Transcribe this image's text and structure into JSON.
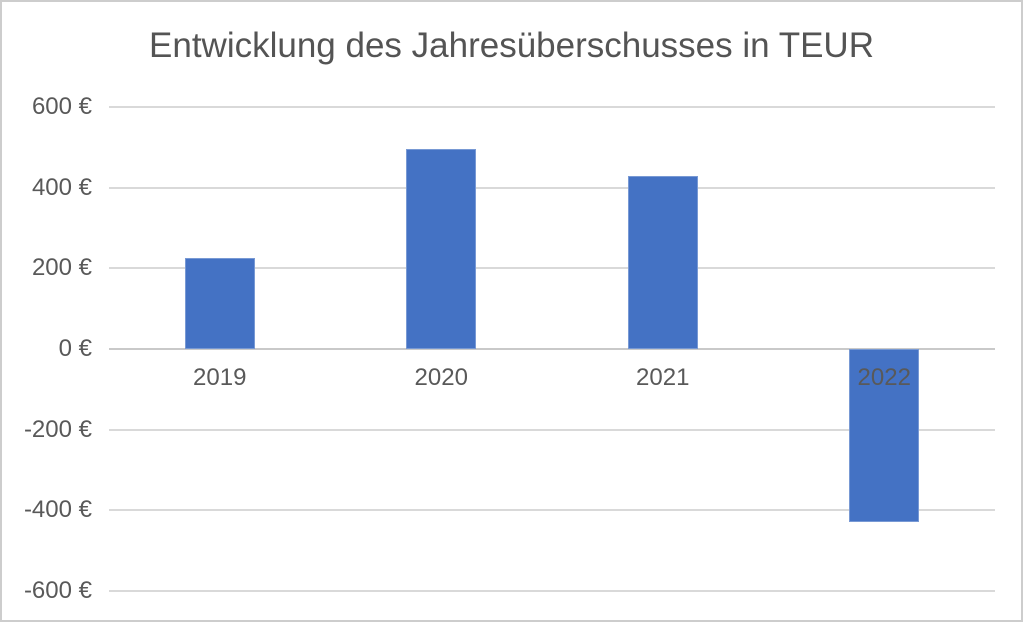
{
  "window": {
    "background_color": "#ffffff",
    "border_color": "#cdcdcd"
  },
  "chart_data": {
    "type": "bar",
    "title": "Entwicklung des Jahresüberschusses in TEUR",
    "categories": [
      "2019",
      "2020",
      "2021",
      "2022"
    ],
    "values": [
      225,
      495,
      430,
      -430
    ],
    "xlabel": "",
    "ylabel": "",
    "ylim": [
      -600,
      600
    ],
    "yticks": [
      600,
      400,
      200,
      0,
      -200,
      -400,
      -600
    ],
    "ytick_labels": [
      "600 €",
      "400 €",
      "200 €",
      "0 €",
      "-200 €",
      "-400 €",
      "-600 €"
    ],
    "grid": true,
    "legend_position": "none",
    "bar_color": "#4472C4",
    "gridline_color": "#d9d9d9",
    "zero_line_color": "#c9c9c9",
    "tick_label_color": "#595959",
    "title_color": "#545454"
  }
}
